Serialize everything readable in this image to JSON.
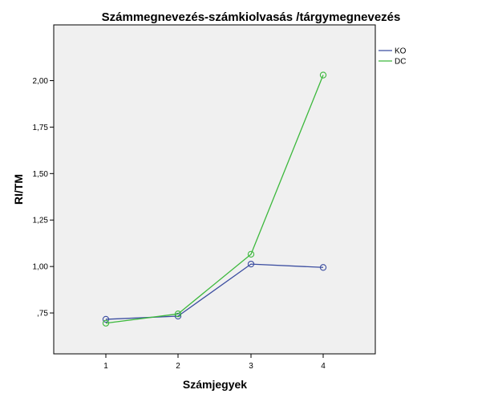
{
  "chart_data": {
    "type": "line",
    "title": "Számmegnevezés-számkiolvasás /tárgymegnevezés",
    "xlabel": "Számjegyek",
    "ylabel": "RI/TM",
    "categories": [
      "1",
      "2",
      "3",
      "4"
    ],
    "ylim": [
      0.53,
      2.3
    ],
    "yticks": [
      0.75,
      1.0,
      1.25,
      1.5,
      1.75,
      2.0
    ],
    "ytick_labels": [
      ",75",
      "1,00",
      "1,25",
      "1,50",
      "1,75",
      "2,00"
    ],
    "grid": false,
    "legend": "right",
    "series": [
      {
        "name": "KO",
        "color": "#3b4da0",
        "marker": "circle-open",
        "values": [
          0.716,
          0.733,
          1.013,
          0.995
        ]
      },
      {
        "name": "DC",
        "color": "#3cb83c",
        "marker": "circle-open",
        "values": [
          0.695,
          0.745,
          1.066,
          2.03
        ]
      }
    ]
  }
}
